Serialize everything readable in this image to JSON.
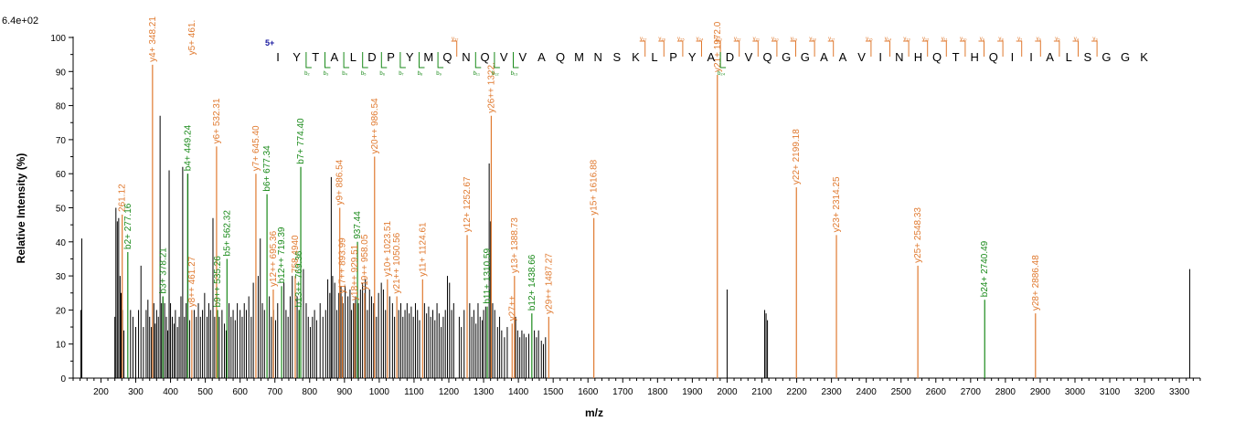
{
  "chart_data": {
    "type": "bar",
    "title": "",
    "scale_label": "6.4e+02",
    "xlabel": "m/z",
    "ylabel": "Relative   Intensity (%)",
    "xlim": [
      120,
      3360
    ],
    "ylim": [
      0,
      100
    ],
    "x_ticks": [
      200,
      300,
      400,
      500,
      600,
      700,
      800,
      900,
      1000,
      1100,
      1200,
      1300,
      1400,
      1500,
      1600,
      1700,
      1800,
      1900,
      2000,
      2100,
      2200,
      2300,
      2400,
      2500,
      2600,
      2700,
      2800,
      2900,
      3000,
      3100,
      3200,
      3300
    ],
    "y_ticks": [
      0,
      10,
      20,
      30,
      40,
      50,
      60,
      70,
      80,
      90,
      100
    ],
    "colors": {
      "unannotated": "#000000",
      "y_ion": "#e07a30",
      "b_ion": "#1a8a1a",
      "charge": "#1a1aa0"
    },
    "unannotated_peaks": [
      [
        142,
        20
      ],
      [
        145,
        41
      ],
      [
        240,
        18
      ],
      [
        243,
        50
      ],
      [
        247,
        46
      ],
      [
        251,
        47
      ],
      [
        255,
        30
      ],
      [
        258,
        25
      ],
      [
        262,
        20
      ],
      [
        266,
        14
      ],
      [
        285,
        20
      ],
      [
        292,
        18
      ],
      [
        300,
        15
      ],
      [
        308,
        20
      ],
      [
        315,
        33
      ],
      [
        322,
        15
      ],
      [
        330,
        20
      ],
      [
        335,
        23
      ],
      [
        340,
        18
      ],
      [
        345,
        15
      ],
      [
        352,
        22
      ],
      [
        356,
        16
      ],
      [
        360,
        20
      ],
      [
        365,
        18
      ],
      [
        370,
        77
      ],
      [
        374,
        22
      ],
      [
        378,
        24
      ],
      [
        383,
        22
      ],
      [
        388,
        18
      ],
      [
        392,
        14
      ],
      [
        396,
        61
      ],
      [
        400,
        22
      ],
      [
        405,
        18
      ],
      [
        410,
        16
      ],
      [
        414,
        20
      ],
      [
        420,
        15
      ],
      [
        425,
        18
      ],
      [
        430,
        24
      ],
      [
        435,
        62
      ],
      [
        440,
        18
      ],
      [
        445,
        22
      ],
      [
        450,
        60
      ],
      [
        455,
        17
      ],
      [
        468,
        20
      ],
      [
        474,
        18
      ],
      [
        480,
        22
      ],
      [
        486,
        18
      ],
      [
        492,
        20
      ],
      [
        498,
        25
      ],
      [
        505,
        18
      ],
      [
        510,
        22
      ],
      [
        515,
        20
      ],
      [
        522,
        47
      ],
      [
        527,
        18
      ],
      [
        540,
        18
      ],
      [
        548,
        20
      ],
      [
        555,
        16
      ],
      [
        560,
        14
      ],
      [
        568,
        22
      ],
      [
        574,
        18
      ],
      [
        580,
        20
      ],
      [
        586,
        17
      ],
      [
        592,
        22
      ],
      [
        600,
        20
      ],
      [
        606,
        18
      ],
      [
        612,
        22
      ],
      [
        618,
        20
      ],
      [
        625,
        24
      ],
      [
        632,
        18
      ],
      [
        638,
        28
      ],
      [
        652,
        30
      ],
      [
        658,
        41
      ],
      [
        664,
        22
      ],
      [
        670,
        20
      ],
      [
        684,
        24
      ],
      [
        690,
        18
      ],
      [
        696,
        20
      ],
      [
        702,
        17
      ],
      [
        708,
        22
      ],
      [
        726,
        28
      ],
      [
        732,
        20
      ],
      [
        738,
        18
      ],
      [
        744,
        24
      ],
      [
        750,
        30
      ],
      [
        764,
        24
      ],
      [
        770,
        20
      ],
      [
        782,
        32
      ],
      [
        790,
        22
      ],
      [
        796,
        18
      ],
      [
        802,
        15
      ],
      [
        808,
        18
      ],
      [
        814,
        20
      ],
      [
        820,
        17
      ],
      [
        830,
        22
      ],
      [
        838,
        18
      ],
      [
        846,
        20
      ],
      [
        852,
        29
      ],
      [
        858,
        25
      ],
      [
        862,
        59
      ],
      [
        866,
        30
      ],
      [
        872,
        28
      ],
      [
        878,
        20
      ],
      [
        884,
        25
      ],
      [
        890,
        27
      ],
      [
        896,
        22
      ],
      [
        902,
        27
      ],
      [
        910,
        24
      ],
      [
        916,
        26
      ],
      [
        920,
        20
      ],
      [
        926,
        22
      ],
      [
        932,
        24
      ],
      [
        940,
        22
      ],
      [
        946,
        26
      ],
      [
        952,
        28
      ],
      [
        960,
        29
      ],
      [
        966,
        20
      ],
      [
        972,
        26
      ],
      [
        978,
        24
      ],
      [
        984,
        22
      ],
      [
        992,
        18
      ],
      [
        998,
        25
      ],
      [
        1006,
        28
      ],
      [
        1012,
        26
      ],
      [
        1018,
        20
      ],
      [
        1030,
        24
      ],
      [
        1038,
        22
      ],
      [
        1044,
        18
      ],
      [
        1056,
        20
      ],
      [
        1062,
        22
      ],
      [
        1068,
        18
      ],
      [
        1074,
        20
      ],
      [
        1080,
        22
      ],
      [
        1086,
        19
      ],
      [
        1092,
        21
      ],
      [
        1098,
        18
      ],
      [
        1104,
        22
      ],
      [
        1110,
        20
      ],
      [
        1116,
        17
      ],
      [
        1130,
        22
      ],
      [
        1136,
        19
      ],
      [
        1142,
        21
      ],
      [
        1148,
        18
      ],
      [
        1154,
        20
      ],
      [
        1160,
        17
      ],
      [
        1166,
        22
      ],
      [
        1172,
        19
      ],
      [
        1178,
        15
      ],
      [
        1184,
        18
      ],
      [
        1190,
        20
      ],
      [
        1196,
        30
      ],
      [
        1202,
        28
      ],
      [
        1208,
        20
      ],
      [
        1214,
        22
      ],
      [
        1230,
        18
      ],
      [
        1236,
        15
      ],
      [
        1244,
        20
      ],
      [
        1260,
        22
      ],
      [
        1266,
        18
      ],
      [
        1272,
        20
      ],
      [
        1278,
        16
      ],
      [
        1284,
        22
      ],
      [
        1290,
        18
      ],
      [
        1296,
        17
      ],
      [
        1300,
        20
      ],
      [
        1306,
        21
      ],
      [
        1316,
        63
      ],
      [
        1320,
        46
      ],
      [
        1326,
        22
      ],
      [
        1332,
        20
      ],
      [
        1340,
        15
      ],
      [
        1346,
        18
      ],
      [
        1352,
        14
      ],
      [
        1360,
        12
      ],
      [
        1368,
        15
      ],
      [
        1392,
        18
      ],
      [
        1398,
        14
      ],
      [
        1404,
        12
      ],
      [
        1410,
        14
      ],
      [
        1416,
        13
      ],
      [
        1422,
        12
      ],
      [
        1430,
        13
      ],
      [
        1446,
        14
      ],
      [
        1452,
        12
      ],
      [
        1458,
        14
      ],
      [
        1466,
        11
      ],
      [
        1472,
        10
      ],
      [
        1478,
        12
      ],
      [
        2000,
        26
      ],
      [
        2108,
        20
      ],
      [
        2112,
        19
      ],
      [
        2116,
        17
      ],
      [
        3330,
        32
      ]
    ],
    "annotated_peaks": [
      {
        "mz": 261.12,
        "intensity": 48,
        "ion": "y",
        "label": "261.12"
      },
      {
        "mz": 277.16,
        "intensity": 37,
        "ion": "b",
        "label": "b2+ 277.16"
      },
      {
        "mz": 348.21,
        "intensity": 92,
        "ion": "y",
        "label": "y4+ 348.21"
      },
      {
        "mz": 378.21,
        "intensity": 24,
        "ion": "b",
        "label": "b3+ 378.21"
      },
      {
        "mz": 449.24,
        "intensity": 60,
        "ion": "b",
        "label": "b4+ 449.24"
      },
      {
        "mz": 461.27,
        "intensity": 20,
        "ion": "y",
        "label": "y8++ 461.27"
      },
      {
        "mz": 461.27,
        "intensity": 94,
        "ion": "y",
        "label": "y5+ 461.",
        "above_peak": true
      },
      {
        "mz": 532.31,
        "intensity": 68,
        "ion": "y",
        "label": "y6+ 532.31"
      },
      {
        "mz": 535.26,
        "intensity": 20,
        "ion": "b",
        "label": "b9++ 535.26"
      },
      {
        "mz": 562.32,
        "intensity": 35,
        "ion": "b",
        "label": "b5+ 562.32"
      },
      {
        "mz": 645.4,
        "intensity": 60,
        "ion": "y",
        "label": "y7+ 645.40"
      },
      {
        "mz": 677.34,
        "intensity": 54,
        "ion": "b",
        "label": "b6+ 677.34"
      },
      {
        "mz": 695.36,
        "intensity": 26,
        "ion": "y",
        "label": "y12++ 695.36"
      },
      {
        "mz": 719.39,
        "intensity": 27,
        "ion": "b",
        "label": "b12++ 719.39"
      },
      {
        "mz": 758.49,
        "intensity": 30,
        "ion": "y",
        "label": "758.4940"
      },
      {
        "mz": 769.36,
        "intensity": 20,
        "ion": "b",
        "label": "b13++ 769.36"
      },
      {
        "mz": 774.4,
        "intensity": 62,
        "ion": "b",
        "label": "b7+ 774.40"
      },
      {
        "mz": 886.54,
        "intensity": 50,
        "ion": "y",
        "label": "y9+ 886.54"
      },
      {
        "mz": 893.99,
        "intensity": 24,
        "ion": "y",
        "label": "y17++ 893.99"
      },
      {
        "mz": 929.51,
        "intensity": 22,
        "ion": "y",
        "label": "y18++ 929.51"
      },
      {
        "mz": 937.44,
        "intensity": 40,
        "ion": "b",
        "label": "937.44"
      },
      {
        "mz": 958.05,
        "intensity": 25,
        "ion": "y",
        "label": "y19++ 958.05"
      },
      {
        "mz": 986.54,
        "intensity": 65,
        "ion": "y",
        "label": "y20++ 986.54"
      },
      {
        "mz": 1023.51,
        "intensity": 29,
        "ion": "y",
        "label": "y10+ 1023.51"
      },
      {
        "mz": 1050.56,
        "intensity": 24,
        "ion": "y",
        "label": "y21++ 1050.56"
      },
      {
        "mz": 1124.61,
        "intensity": 29,
        "ion": "y",
        "label": "y11+ 1124.61"
      },
      {
        "mz": 1252.67,
        "intensity": 42,
        "ion": "y",
        "label": "y12+ 1252.67"
      },
      {
        "mz": 1310.59,
        "intensity": 21,
        "ion": "b",
        "label": "b11+ 1310.59"
      },
      {
        "mz": 1322.0,
        "intensity": 77,
        "ion": "y",
        "label": "y26++ 1322."
      },
      {
        "mz": 1388.73,
        "intensity": 30,
        "ion": "y",
        "label": "y13+ 1388.73"
      },
      {
        "mz": 1382.0,
        "intensity": 16,
        "ion": "y",
        "label": "y27++"
      },
      {
        "mz": 1438.66,
        "intensity": 19,
        "ion": "b",
        "label": "b12+ 1438.66"
      },
      {
        "mz": 1487.27,
        "intensity": 18,
        "ion": "y",
        "label": "y29++ 1487.27"
      },
      {
        "mz": 1616.88,
        "intensity": 47,
        "ion": "y",
        "label": "y15+ 1616.88"
      },
      {
        "mz": 1972.0,
        "intensity": 89,
        "ion": "y",
        "label": "y21+ 1972.0"
      },
      {
        "mz": 2199.18,
        "intensity": 56,
        "ion": "y",
        "label": "y22+ 2199.18"
      },
      {
        "mz": 2314.25,
        "intensity": 42,
        "ion": "y",
        "label": "y23+ 2314.25"
      },
      {
        "mz": 2548.33,
        "intensity": 33,
        "ion": "y",
        "label": "y25+ 2548.33"
      },
      {
        "mz": 2740.49,
        "intensity": 23,
        "ion": "b",
        "label": "b24+ 2740.49"
      },
      {
        "mz": 2886.48,
        "intensity": 19,
        "ion": "y",
        "label": "y28+ 2886.48"
      }
    ],
    "sequence": {
      "charge": "5+",
      "residues": [
        "I",
        "Y",
        "T",
        "A",
        "L",
        "D",
        "P",
        "Y",
        "M",
        "Q",
        "N",
        "Q",
        "V",
        "V",
        "A",
        "Q",
        "M",
        "N",
        "S",
        "K",
        "L",
        "P",
        "Y",
        "A",
        "D",
        "V",
        "Q",
        "G",
        "G",
        "A",
        "A",
        "V",
        "I",
        "N",
        "H",
        "Q",
        "T",
        "H",
        "Q",
        "I",
        "I",
        "A",
        "L",
        "S",
        "G",
        "G",
        "K"
      ],
      "y_marks": [
        {
          "after": 10,
          "label": "y₃₇"
        },
        {
          "after": 20,
          "label": "y₂₇"
        },
        {
          "after": 21,
          "label": "y₂₆"
        },
        {
          "after": 22,
          "label": "y₂₅"
        },
        {
          "after": 23,
          "label": "y₂₄"
        },
        {
          "after": 24,
          "label": "y₂₃"
        },
        {
          "after": 25,
          "label": "y₂₂"
        },
        {
          "after": 26,
          "label": "y₂₁"
        },
        {
          "after": 27,
          "label": "y₂₀"
        },
        {
          "after": 28,
          "label": "y₁₉"
        },
        {
          "after": 29,
          "label": "y₁₈"
        },
        {
          "after": 30,
          "label": "y₁₇"
        },
        {
          "after": 32,
          "label": "y₁₅"
        },
        {
          "after": 33,
          "label": "y₁₄"
        },
        {
          "after": 34,
          "label": "y₁₃"
        },
        {
          "after": 35,
          "label": "y₁₂"
        },
        {
          "after": 36,
          "label": "y₁₁"
        },
        {
          "after": 37,
          "label": "y₁₀"
        },
        {
          "after": 38,
          "label": "y₉"
        },
        {
          "after": 39,
          "label": "y₈"
        },
        {
          "after": 40,
          "label": "y₇"
        },
        {
          "after": 41,
          "label": "y₆"
        },
        {
          "after": 42,
          "label": "y₅"
        },
        {
          "after": 43,
          "label": "y₄"
        },
        {
          "after": 44,
          "label": "y₃"
        }
      ],
      "b_marks": [
        {
          "after": 2,
          "label": "b₂"
        },
        {
          "after": 3,
          "label": "b₃"
        },
        {
          "after": 4,
          "label": "b₄"
        },
        {
          "after": 5,
          "label": "b₅"
        },
        {
          "after": 6,
          "label": "b₆"
        },
        {
          "after": 7,
          "label": "b₇"
        },
        {
          "after": 8,
          "label": "b₈"
        },
        {
          "after": 9,
          "label": "b₉"
        },
        {
          "after": 11,
          "label": "b₁₁"
        },
        {
          "after": 12,
          "label": "b₁₂"
        },
        {
          "after": 13,
          "label": "b₁₃"
        },
        {
          "after": 24,
          "label": "b₂₄"
        }
      ]
    }
  }
}
